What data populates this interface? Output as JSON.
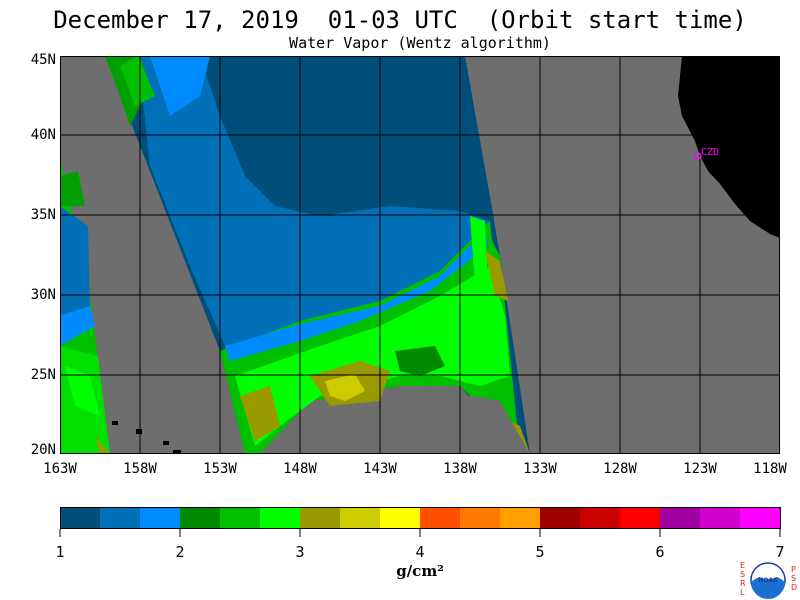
{
  "header": {
    "title": "December 17, 2019  01-03 UTC  (Orbit start time)",
    "subtitle": "Water Vapor (Wentz algorithm)"
  },
  "map": {
    "lat_labels": [
      "45N",
      "40N",
      "35N",
      "30N",
      "25N",
      "20N"
    ],
    "lon_labels": [
      "163W",
      "158W",
      "153W",
      "148W",
      "143W",
      "138W",
      "133W",
      "128W",
      "123W",
      "118W"
    ],
    "station_label": "CZD",
    "colors": {
      "land": "#000000",
      "no_data": "#6e6e6e",
      "grid": "#000000",
      "station": "#ff00ff"
    }
  },
  "colorbar": {
    "ticks": [
      "1",
      "2",
      "3",
      "4",
      "5",
      "6",
      "7"
    ],
    "unit": "g/cm²",
    "colors": [
      "#004f7a",
      "#0070b8",
      "#008cff",
      "#008a00",
      "#00c000",
      "#00ff00",
      "#999900",
      "#cccc00",
      "#ffff00",
      "#ff5000",
      "#ff7800",
      "#ffa000",
      "#a00000",
      "#cc0000",
      "#ff0000",
      "#a000a0",
      "#d000d0",
      "#ff00ff"
    ]
  },
  "logo": {
    "left_letters": [
      "E",
      "S",
      "R",
      "L"
    ],
    "right_letters": [
      "P",
      "S",
      "D"
    ],
    "center_text": "NOAA"
  }
}
